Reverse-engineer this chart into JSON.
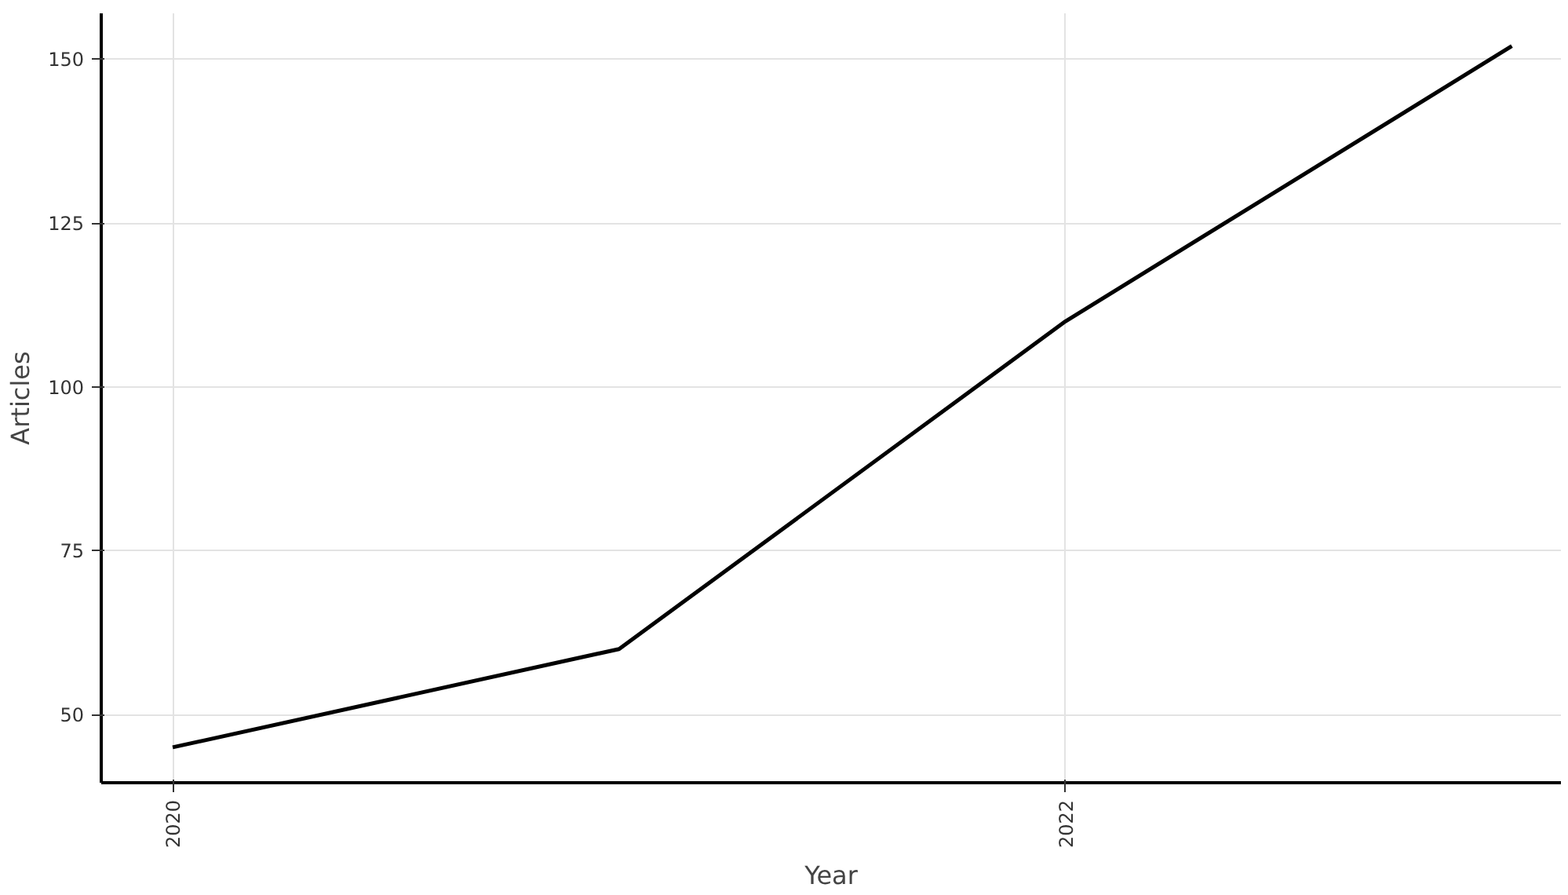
{
  "chart_data": {
    "type": "line",
    "xlabel": "Year",
    "ylabel": "Articles",
    "x": [
      2020,
      2021,
      2022,
      2023
    ],
    "series": [
      {
        "color": "#000000",
        "values": [
          45,
          60,
          110,
          152
        ]
      }
    ],
    "xlim": [
      2019.84,
      2023.11
    ],
    "xticks": [
      2020,
      2022
    ],
    "ylim": [
      39.6,
      157
    ],
    "yticks": [
      50,
      75,
      100,
      125,
      150
    ],
    "grid": true,
    "marker": "none",
    "line_style": "solid"
  }
}
